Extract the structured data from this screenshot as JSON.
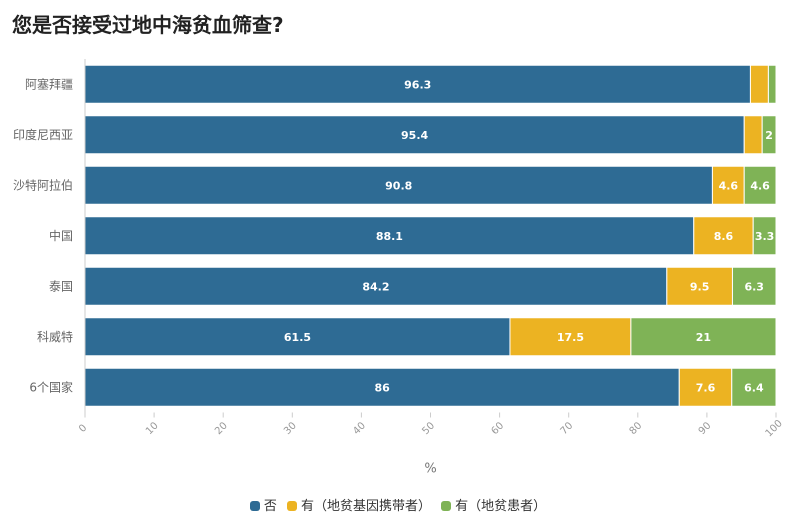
{
  "chart_data": {
    "type": "bar",
    "orientation": "horizontal",
    "stacked": true,
    "title": "您是否接受过地中海贫血筛查?",
    "categories": [
      "阿塞拜疆",
      "印度尼西亚",
      "沙特阿拉伯",
      "中国",
      "泰国",
      "科威特",
      "6个国家"
    ],
    "series": [
      {
        "name": "否",
        "color": "#2e6b94",
        "values": [
          96.3,
          95.4,
          90.8,
          88.1,
          84.2,
          61.5,
          86
        ]
      },
      {
        "name": "有（地贫基因携带者）",
        "color": "#ecb322",
        "values": [
          2.6,
          2.6,
          4.6,
          8.6,
          9.5,
          17.5,
          7.6
        ]
      },
      {
        "name": "有（地贫患者）",
        "color": "#7fb356",
        "values": [
          1.1,
          2,
          4.6,
          3.3,
          6.3,
          21,
          6.4
        ]
      }
    ],
    "data_labels": [
      [
        "96.3",
        "",
        ""
      ],
      [
        "95.4",
        "",
        "2"
      ],
      [
        "90.8",
        "4.6",
        "4.6"
      ],
      [
        "88.1",
        "8.6",
        "3.3"
      ],
      [
        "84.2",
        "9.5",
        "6.3"
      ],
      [
        "61.5",
        "17.5",
        "21"
      ],
      [
        "86",
        "7.6",
        "6.4"
      ]
    ],
    "xlabel": "%",
    "ylabel": "",
    "xlim": [
      0,
      100
    ],
    "xticks": [
      "0",
      "10",
      "20",
      "30",
      "40",
      "50",
      "60",
      "70",
      "80",
      "90",
      "100"
    ],
    "legend_position": "bottom",
    "grid": false
  }
}
